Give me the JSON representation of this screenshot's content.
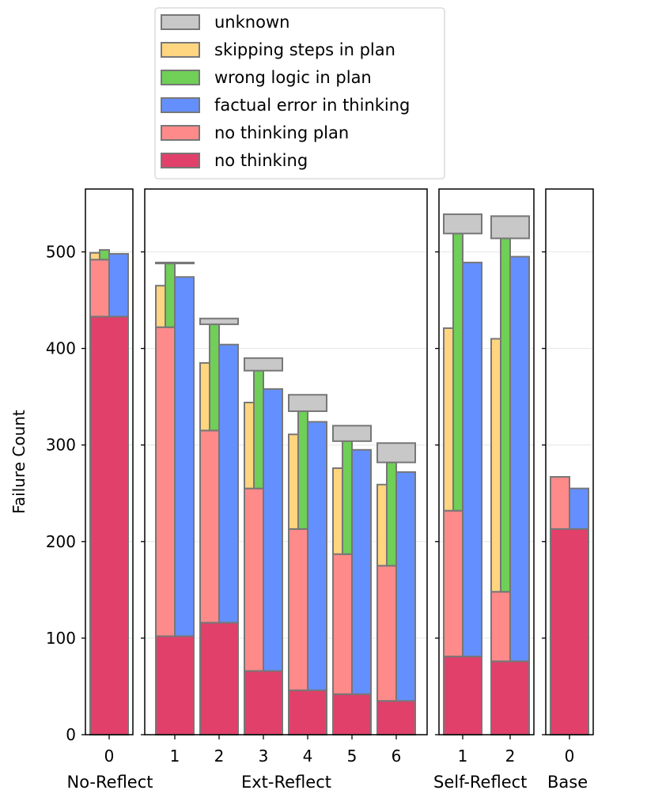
{
  "chart_data": {
    "type": "bar",
    "subtype": "stacked-grouped",
    "ylabel": "Failure Count",
    "ylim": [
      0,
      560
    ],
    "yticks": [
      0,
      100,
      200,
      300,
      400,
      500
    ],
    "grid": "horizontal",
    "legend_placement": "top-center",
    "legend": [
      {
        "key": "unknown",
        "label": "unknown",
        "color": "#c8c8c8"
      },
      {
        "key": "skipping",
        "label": "skipping steps in plan",
        "color": "#ffd580"
      },
      {
        "key": "wrong_logic",
        "label": "wrong logic in plan",
        "color": "#6fcf57"
      },
      {
        "key": "factual",
        "label": "factual error in thinking",
        "color": "#6490ff"
      },
      {
        "key": "no_plan",
        "label": "no thinking plan",
        "color": "#ff8a8a"
      },
      {
        "key": "no_thinking",
        "label": "no thinking",
        "color": "#e0406a"
      }
    ],
    "panels": [
      {
        "label": "No-Reflect",
        "groups": [
          {
            "tick": "0",
            "no_thinking": 433,
            "no_plan": 492,
            "skipping": 499,
            "wrong_logic": 502,
            "factual": 498,
            "unknown": 501
          }
        ]
      },
      {
        "label": "Ext-Reflect",
        "groups": [
          {
            "tick": "1",
            "no_thinking": 102,
            "no_plan": 422,
            "skipping": 465,
            "wrong_logic": 488,
            "factual": 474,
            "unknown": 489
          },
          {
            "tick": "2",
            "no_thinking": 116,
            "no_plan": 315,
            "skipping": 385,
            "wrong_logic": 425,
            "factual": 404,
            "unknown": 431
          },
          {
            "tick": "3",
            "no_thinking": 66,
            "no_plan": 255,
            "skipping": 344,
            "wrong_logic": 377,
            "factual": 358,
            "unknown": 390
          },
          {
            "tick": "4",
            "no_thinking": 46,
            "no_plan": 213,
            "skipping": 311,
            "wrong_logic": 335,
            "factual": 324,
            "unknown": 352
          },
          {
            "tick": "5",
            "no_thinking": 42,
            "no_plan": 187,
            "skipping": 276,
            "wrong_logic": 304,
            "factual": 295,
            "unknown": 320
          },
          {
            "tick": "6",
            "no_thinking": 35,
            "no_plan": 175,
            "skipping": 259,
            "wrong_logic": 282,
            "factual": 272,
            "unknown": 302
          }
        ]
      },
      {
        "label": "Self-Reflect",
        "groups": [
          {
            "tick": "1",
            "no_thinking": 81,
            "no_plan": 232,
            "skipping": 421,
            "wrong_logic": 519,
            "factual": 489,
            "unknown": 539
          },
          {
            "tick": "2",
            "no_thinking": 76,
            "no_plan": 148,
            "skipping": 410,
            "wrong_logic": 514,
            "factual": 495,
            "unknown": 537
          }
        ]
      },
      {
        "label": "Base",
        "groups": [
          {
            "tick": "0",
            "no_thinking": 213,
            "no_plan": 267,
            "skipping": 267,
            "wrong_logic": 267,
            "factual": 255,
            "unknown": 267
          }
        ]
      }
    ]
  }
}
